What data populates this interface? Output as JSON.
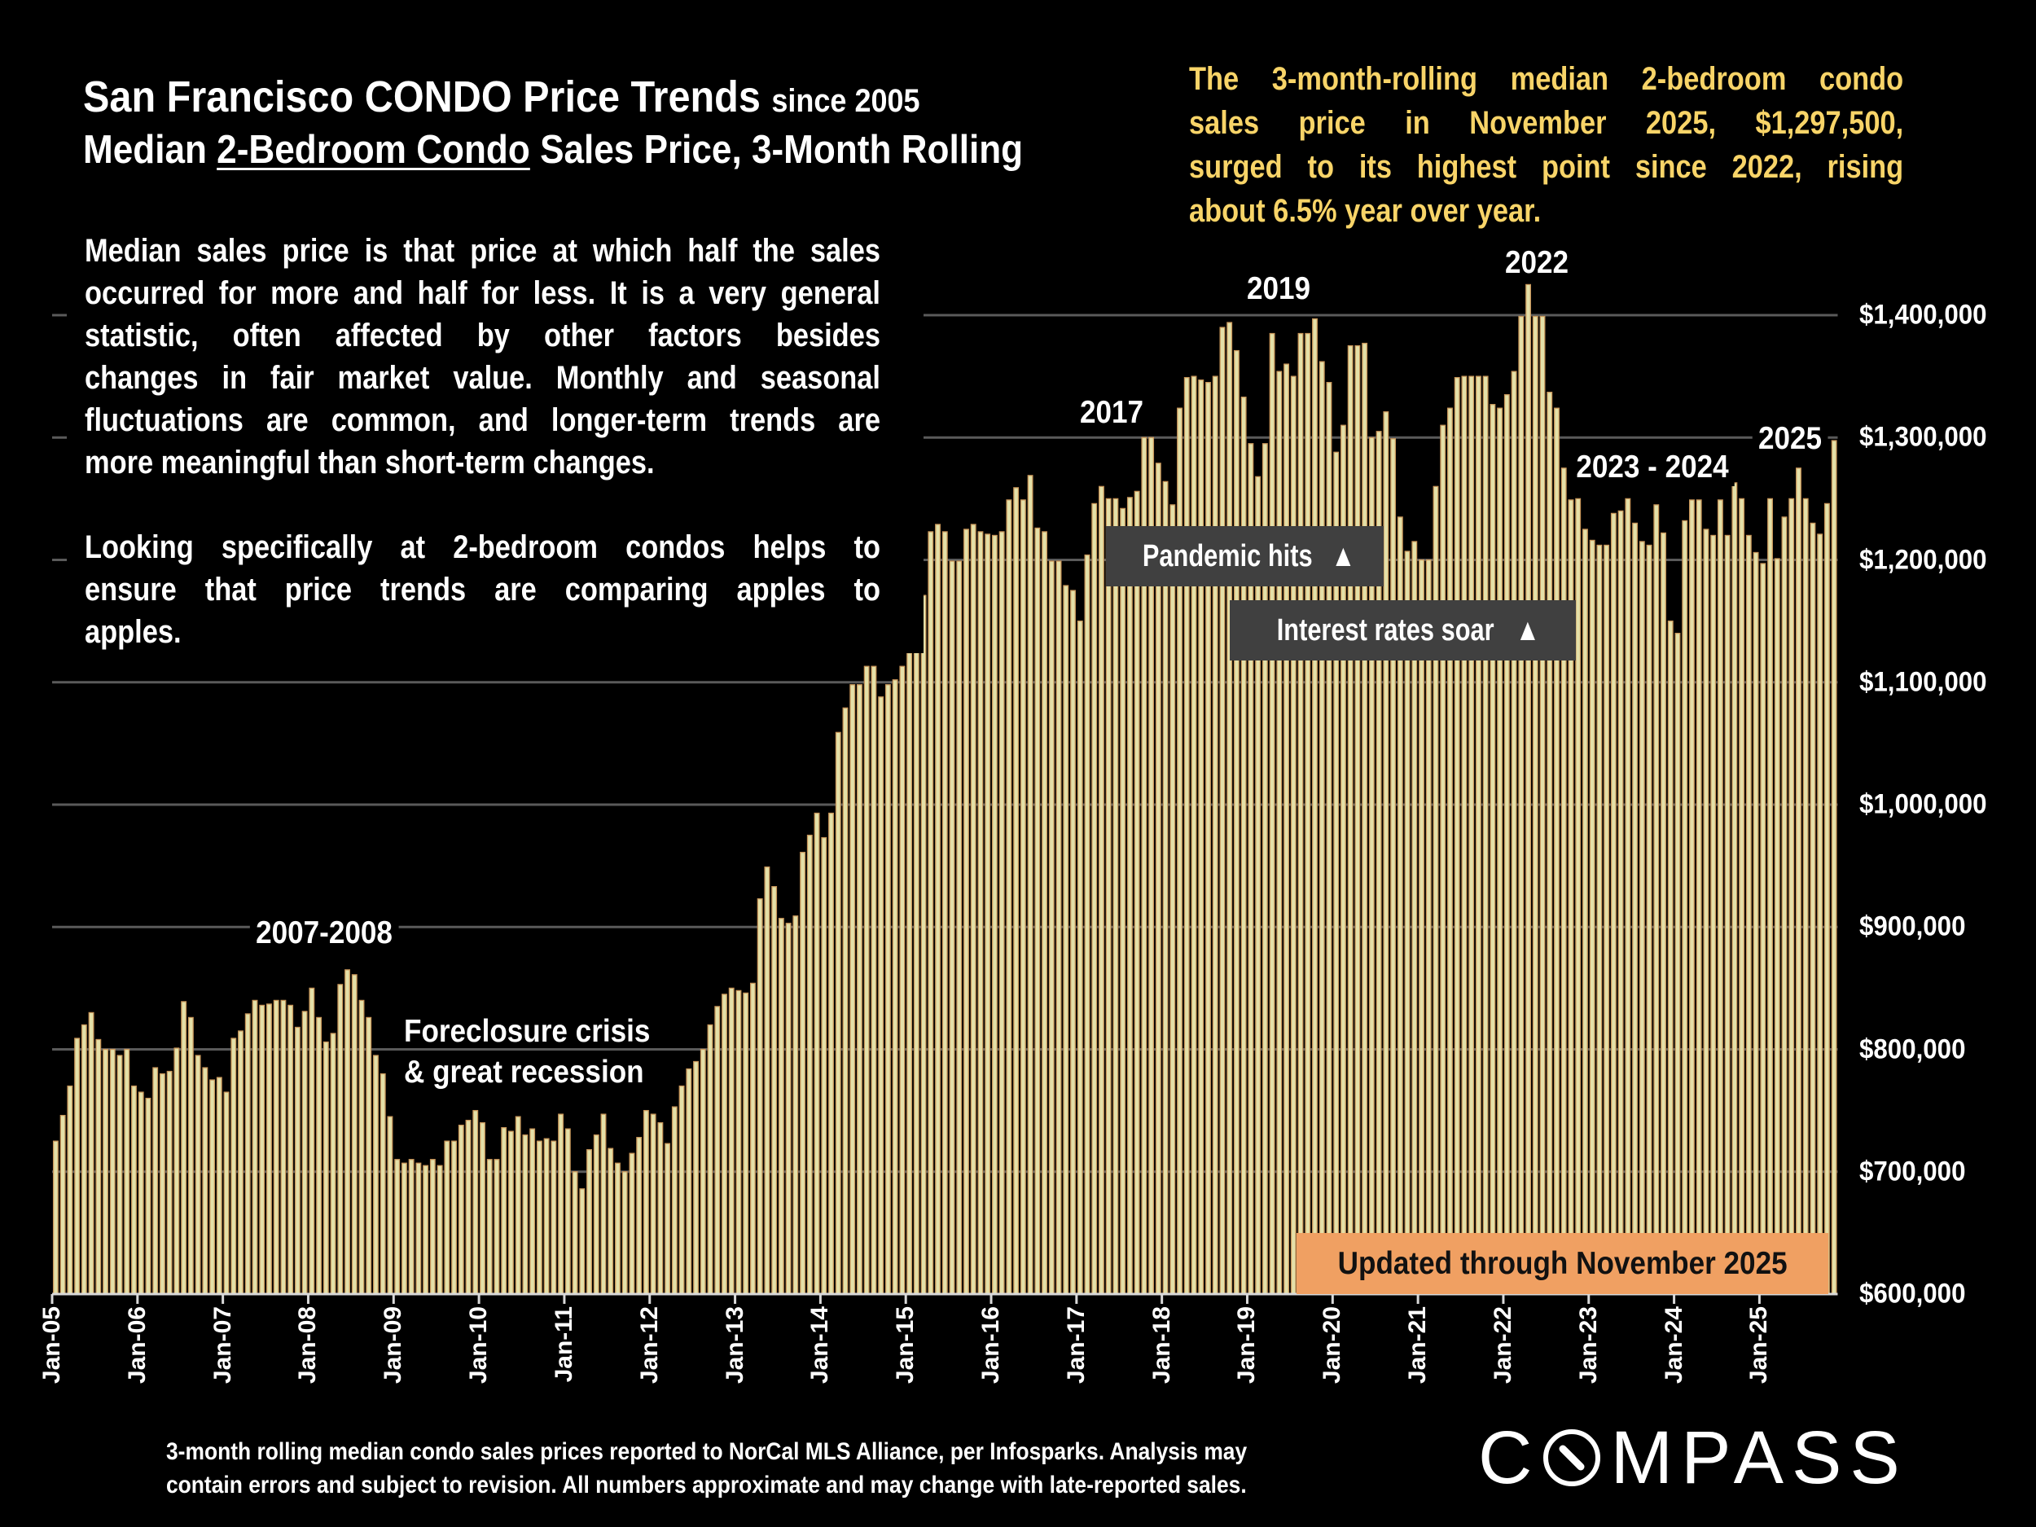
{
  "title": {
    "line1_main": "San Francisco CONDO Price Trends",
    "line1_suffix": "since 2005",
    "line2_pre": "Median ",
    "line2_underlined": "2-Bedroom Condo",
    "line2_post": " Sales Price, 3-Month Rolling"
  },
  "description": {
    "paragraph1": [
      "Median sales price is that price at which half the sales",
      "occurred for more and half for less. It is a very general",
      "statistic, often affected by other factors besides",
      "changes in fair market value. Monthly and seasonal",
      "fluctuations are common, and longer-term trends are",
      "more meaningful than short-term changes."
    ],
    "paragraph2": [
      "Looking specifically at 2-bedroom condos helps to",
      "ensure that price trends are comparing apples to",
      "apples."
    ]
  },
  "highlight": {
    "lines": [
      "The 3-month-rolling median 2-bedroom condo",
      "sales price in November 2025, $1,297,500,",
      "surged to its highest point since 2022, rising",
      "about 6.5% year over year."
    ],
    "color": "#f8d468"
  },
  "annotations": {
    "y2007_2008": "2007-2008",
    "foreclosure_1": "Foreclosure crisis",
    "foreclosure_2": "& great recession",
    "y2017": "2017",
    "y2019": "2019",
    "y2022": "2022",
    "y2023_2024": "2023 - 2024",
    "y2025": "2025",
    "pandemic": "Pandemic hits",
    "interest": "Interest rates soar",
    "arrow_icon": "up-triangle",
    "updated": "Updated through November 2025",
    "updated_color": "#f0a062"
  },
  "footer": {
    "line1": "3-month rolling median condo sales prices reported to NorCal MLS Alliance, per Infosparks. Analysis may",
    "line2": "contain errors and subject to revision. All numbers approximate and may change with late-reported sales."
  },
  "logo": {
    "text": "COMPASS"
  },
  "chart_data": {
    "type": "bar",
    "title": "San Francisco CONDO Price Trends since 2005",
    "subtitle": "Median 2-Bedroom Condo Sales Price, 3-Month Rolling",
    "xlabel": "",
    "ylabel": "",
    "ylim": [
      600000,
      1400000
    ],
    "y_axis_position": "right",
    "y_tick_labels": [
      "$600,000",
      "$700,000",
      "$800,000",
      "$900,000",
      "$1,000,000",
      "$1,100,000",
      "$1,200,000",
      "$1,300,000",
      "$1,400,000"
    ],
    "y_ticks": [
      600000,
      700000,
      800000,
      900000,
      1000000,
      1100000,
      1200000,
      1300000,
      1400000
    ],
    "x_tick_labels": [
      "Jan-05",
      "Jan-06",
      "Jan-07",
      "Jan-08",
      "Jan-09",
      "Jan-10",
      "Jan-11",
      "Jan-12",
      "Jan-13",
      "Jan-14",
      "Jan-15",
      "Jan-16",
      "Jan-17",
      "Jan-18",
      "Jan-19",
      "Jan-20",
      "Jan-21",
      "Jan-22",
      "Jan-23",
      "Jan-24",
      "Jan-25"
    ],
    "grid": true,
    "bar_color": "#e4e0a8",
    "bar_edge_color": "#c8965a",
    "categories": [
      "Jan-05",
      "Feb-05",
      "Mar-05",
      "Apr-05",
      "May-05",
      "Jun-05",
      "Jul-05",
      "Aug-05",
      "Sep-05",
      "Oct-05",
      "Nov-05",
      "Dec-05",
      "Jan-06",
      "Feb-06",
      "Mar-06",
      "Apr-06",
      "May-06",
      "Jun-06",
      "Jul-06",
      "Aug-06",
      "Sep-06",
      "Oct-06",
      "Nov-06",
      "Dec-06",
      "Jan-07",
      "Feb-07",
      "Mar-07",
      "Apr-07",
      "May-07",
      "Jun-07",
      "Jul-07",
      "Aug-07",
      "Sep-07",
      "Oct-07",
      "Nov-07",
      "Dec-07",
      "Jan-08",
      "Feb-08",
      "Mar-08",
      "Apr-08",
      "May-08",
      "Jun-08",
      "Jul-08",
      "Aug-08",
      "Sep-08",
      "Oct-08",
      "Nov-08",
      "Dec-08",
      "Jan-09",
      "Feb-09",
      "Mar-09",
      "Apr-09",
      "May-09",
      "Jun-09",
      "Jul-09",
      "Aug-09",
      "Sep-09",
      "Oct-09",
      "Nov-09",
      "Dec-09",
      "Jan-10",
      "Feb-10",
      "Mar-10",
      "Apr-10",
      "May-10",
      "Jun-10",
      "Jul-10",
      "Aug-10",
      "Sep-10",
      "Oct-10",
      "Nov-10",
      "Dec-10",
      "Jan-11",
      "Feb-11",
      "Mar-11",
      "Apr-11",
      "May-11",
      "Jun-11",
      "Jul-11",
      "Aug-11",
      "Sep-11",
      "Oct-11",
      "Nov-11",
      "Dec-11",
      "Jan-12",
      "Feb-12",
      "Mar-12",
      "Apr-12",
      "May-12",
      "Jun-12",
      "Jul-12",
      "Aug-12",
      "Sep-12",
      "Oct-12",
      "Nov-12",
      "Dec-12",
      "Jan-13",
      "Feb-13",
      "Mar-13",
      "Apr-13",
      "May-13",
      "Jun-13",
      "Jul-13",
      "Aug-13",
      "Sep-13",
      "Oct-13",
      "Nov-13",
      "Dec-13",
      "Jan-14",
      "Feb-14",
      "Mar-14",
      "Apr-14",
      "May-14",
      "Jun-14",
      "Jul-14",
      "Aug-14",
      "Sep-14",
      "Oct-14",
      "Nov-14",
      "Dec-14",
      "Jan-15",
      "Feb-15",
      "Mar-15",
      "Apr-15",
      "May-15",
      "Jun-15",
      "Jul-15",
      "Aug-15",
      "Sep-15",
      "Oct-15",
      "Nov-15",
      "Dec-15",
      "Jan-16",
      "Feb-16",
      "Mar-16",
      "Apr-16",
      "May-16",
      "Jun-16",
      "Jul-16",
      "Aug-16",
      "Sep-16",
      "Oct-16",
      "Nov-16",
      "Dec-16",
      "Jan-17",
      "Feb-17",
      "Mar-17",
      "Apr-17",
      "May-17",
      "Jun-17",
      "Jul-17",
      "Aug-17",
      "Sep-17",
      "Oct-17",
      "Nov-17",
      "Dec-17",
      "Jan-18",
      "Feb-18",
      "Mar-18",
      "Apr-18",
      "May-18",
      "Jun-18",
      "Jul-18",
      "Aug-18",
      "Sep-18",
      "Oct-18",
      "Nov-18",
      "Dec-18",
      "Jan-19",
      "Feb-19",
      "Mar-19",
      "Apr-19",
      "May-19",
      "Jun-19",
      "Jul-19",
      "Aug-19",
      "Sep-19",
      "Oct-19",
      "Nov-19",
      "Dec-19",
      "Jan-20",
      "Feb-20",
      "Mar-20",
      "Apr-20",
      "May-20",
      "Jun-20",
      "Jul-20",
      "Aug-20",
      "Sep-20",
      "Oct-20",
      "Nov-20",
      "Dec-20",
      "Jan-21",
      "Feb-21",
      "Mar-21",
      "Apr-21",
      "May-21",
      "Jun-21",
      "Jul-21",
      "Aug-21",
      "Sep-21",
      "Oct-21",
      "Nov-21",
      "Dec-21",
      "Jan-22",
      "Feb-22",
      "Mar-22",
      "Apr-22",
      "May-22",
      "Jun-22",
      "Jul-22",
      "Aug-22",
      "Sep-22",
      "Oct-22",
      "Nov-22",
      "Dec-22",
      "Jan-23",
      "Feb-23",
      "Mar-23",
      "Apr-23",
      "May-23",
      "Jun-23",
      "Jul-23",
      "Aug-23",
      "Sep-23",
      "Oct-23",
      "Nov-23",
      "Dec-23",
      "Jan-24",
      "Feb-24",
      "Mar-24",
      "Apr-24",
      "May-24",
      "Jun-24",
      "Jul-24",
      "Aug-24",
      "Sep-24",
      "Oct-24",
      "Nov-24",
      "Dec-24",
      "Jan-25",
      "Feb-25",
      "Mar-25",
      "Apr-25",
      "May-25",
      "Jun-25",
      "Jul-25",
      "Aug-25",
      "Sep-25",
      "Oct-25",
      "Nov-25"
    ],
    "values": [
      725000,
      746000,
      770000,
      809000,
      820000,
      830000,
      808000,
      800000,
      800000,
      795000,
      800000,
      770000,
      765000,
      760000,
      785000,
      780000,
      782000,
      801000,
      839000,
      826000,
      795000,
      785000,
      775000,
      777000,
      765000,
      809000,
      815000,
      829000,
      840000,
      836000,
      837000,
      840000,
      840000,
      836000,
      818000,
      831000,
      850000,
      826000,
      806000,
      813000,
      853000,
      865000,
      861000,
      840000,
      826000,
      795000,
      780000,
      745000,
      710000,
      707000,
      710000,
      707000,
      705000,
      710000,
      705000,
      725000,
      725000,
      738000,
      742000,
      750000,
      740000,
      710000,
      710000,
      736000,
      733000,
      745000,
      730000,
      735000,
      725000,
      727000,
      725000,
      747000,
      735000,
      700000,
      686000,
      718000,
      730000,
      747000,
      719000,
      707000,
      700000,
      715000,
      728000,
      750000,
      747000,
      740000,
      723000,
      753000,
      770000,
      784000,
      790000,
      800000,
      820000,
      835000,
      845000,
      850000,
      848000,
      846000,
      854000,
      923000,
      949000,
      933000,
      907000,
      903000,
      909000,
      961000,
      975000,
      993000,
      973000,
      993000,
      1059000,
      1079000,
      1098000,
      1098000,
      1113000,
      1113000,
      1088000,
      1098000,
      1102000,
      1113000,
      1124000,
      1128000,
      1171000,
      1223000,
      1229000,
      1223000,
      1199000,
      1199000,
      1225000,
      1229000,
      1223000,
      1221000,
      1220000,
      1223000,
      1249000,
      1259000,
      1249000,
      1269000,
      1226000,
      1223000,
      1199000,
      1199000,
      1179000,
      1175000,
      1150000,
      1204000,
      1246000,
      1260000,
      1250000,
      1250000,
      1242000,
      1251000,
      1256000,
      1300000,
      1300000,
      1279000,
      1264000,
      1245000,
      1324000,
      1349000,
      1350000,
      1347000,
      1345000,
      1350000,
      1390000,
      1394000,
      1371000,
      1333000,
      1295000,
      1268000,
      1295000,
      1385000,
      1354000,
      1360000,
      1350000,
      1385000,
      1385000,
      1397000,
      1362000,
      1345000,
      1288000,
      1310000,
      1375000,
      1375000,
      1377000,
      1300000,
      1305000,
      1321000,
      1299000,
      1235000,
      1207000,
      1215000,
      1200000,
      1200000,
      1260000,
      1310000,
      1324000,
      1349000,
      1350000,
      1350000,
      1350000,
      1350000,
      1327000,
      1324000,
      1335000,
      1354000,
      1399000,
      1425000,
      1399000,
      1399000,
      1337000,
      1324000,
      1275000,
      1249000,
      1250000,
      1225000,
      1216000,
      1212000,
      1212000,
      1238000,
      1240000,
      1250000,
      1230000,
      1215000,
      1212000,
      1245000,
      1222000,
      1150000,
      1140000,
      1232000,
      1249000,
      1249000,
      1225000,
      1220000,
      1249000,
      1220000,
      1263000,
      1250000,
      1220000,
      1206000,
      1197000,
      1250000,
      1201000,
      1235000,
      1250000,
      1275000,
      1250000,
      1230000,
      1221000,
      1246000,
      1297500
    ]
  }
}
